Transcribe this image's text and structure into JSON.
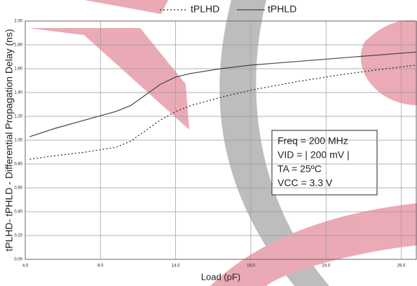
{
  "chart_data": {
    "type": "line",
    "x_label": "Load (pF)",
    "y_label": "tPLHD- tPHLD - Differential Propagation Delay (ns)",
    "xlim": [
      4,
      30
    ],
    "xticks": [
      {
        "value": 4,
        "label": "4.0"
      },
      {
        "value": 9,
        "label": "9.0"
      },
      {
        "value": 14,
        "label": "14.0"
      },
      {
        "value": 19,
        "label": "19.0"
      },
      {
        "value": 24,
        "label": "24.0"
      },
      {
        "value": 29,
        "label": "29.0"
      }
    ],
    "ylim": [
      0,
      2
    ],
    "yticks": [
      {
        "value": 0,
        "label": "0.00"
      },
      {
        "value": 0.2,
        "label": "0.20"
      },
      {
        "value": 0.4,
        "label": "0.40"
      },
      {
        "value": 0.6,
        "label": "0.60"
      },
      {
        "value": 0.8,
        "label": "0.80"
      },
      {
        "value": 1,
        "label": "1.00"
      },
      {
        "value": 1.2,
        "label": "1.20"
      },
      {
        "value": 1.4,
        "label": "1.40"
      },
      {
        "value": 1.6,
        "label": "1.60"
      },
      {
        "value": 1.8,
        "label": "1.80"
      },
      {
        "value": 2,
        "label": "2.00"
      }
    ],
    "grid": true,
    "x": [
      4.3,
      6,
      8,
      10,
      11,
      12,
      13,
      14,
      15,
      17,
      19,
      22,
      25,
      28,
      30
    ],
    "series": [
      {
        "name": "tPLHD",
        "color": "#222222",
        "dash": "dotted",
        "values": [
          0.84,
          0.87,
          0.9,
          0.94,
          0.99,
          1.08,
          1.17,
          1.24,
          1.29,
          1.36,
          1.42,
          1.49,
          1.55,
          1.6,
          1.63
        ]
      },
      {
        "name": "tPHLD",
        "color": "#444444",
        "dash": "solid",
        "values": [
          1.03,
          1.1,
          1.17,
          1.24,
          1.29,
          1.38,
          1.47,
          1.53,
          1.56,
          1.6,
          1.63,
          1.66,
          1.69,
          1.72,
          1.74
        ]
      }
    ],
    "annotation": [
      "Freq = 200 MHz",
      "VID = | 200 mV |",
      "TA = 25ºC",
      "VCC = 3.3 V"
    ]
  }
}
